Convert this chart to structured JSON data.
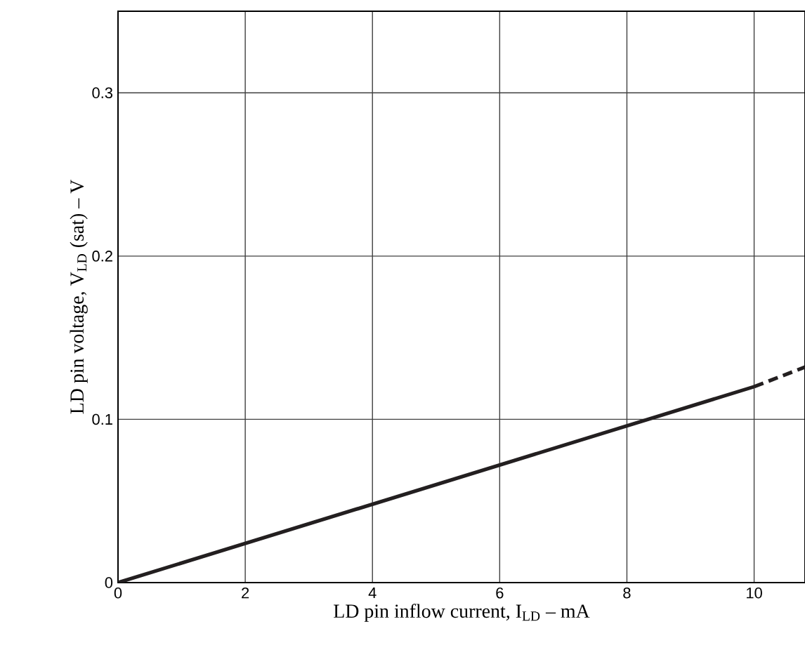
{
  "chart_data": {
    "type": "line",
    "xlabel": "LD pin inflow current,  I$_{LD}$  –  mA",
    "ylabel": "LD pin voltage,  V$_{LD}$ (sat)  –  V",
    "xlim": [
      0,
      10.8
    ],
    "ylim": [
      0,
      0.35
    ],
    "xticks": [
      0,
      2,
      4,
      6,
      8,
      10
    ],
    "yticks": [
      0,
      0.1,
      0.2,
      0.3
    ],
    "grid": true,
    "series": [
      {
        "color": "#231f20",
        "x": [
          0,
          10
        ],
        "values": [
          0,
          0.12
        ],
        "line_style": "solid"
      },
      {
        "color": "#231f20",
        "x": [
          10,
          10.8
        ],
        "values": [
          0.12,
          0.132
        ],
        "line_style": "dashed"
      }
    ]
  }
}
